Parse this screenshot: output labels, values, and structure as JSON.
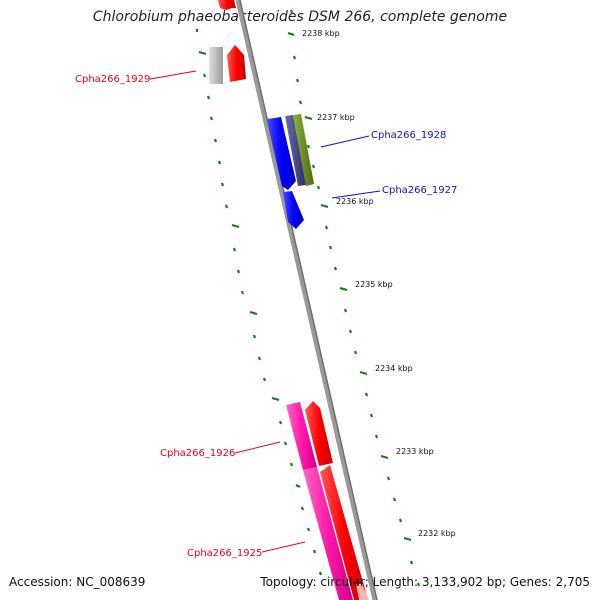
{
  "title": "Chlorobium phaeobacteroides DSM 266, complete genome",
  "footer": {
    "accession": "Accession: NC_008639",
    "summary": "Topology: circular; Length: 3,133,902 bp; Genes: 2,705"
  },
  "scale_labels": [
    "2238 kbp",
    "2237 kbp",
    "2236 kbp",
    "2235 kbp",
    "2234 kbp",
    "2233 kbp",
    "2232 kbp"
  ],
  "genes": [
    {
      "label": "Cpha266_1929",
      "color": "#e8001c"
    },
    {
      "label": "Cpha266_1928",
      "color": "#1010c8"
    },
    {
      "label": "Cpha266_1927",
      "color": "#1010c8"
    },
    {
      "label": "Cpha266_1926",
      "color": "#e8001c"
    },
    {
      "label": "Cpha266_1925",
      "color": "#e8001c"
    }
  ],
  "colors": {
    "backbone": "#808080",
    "ticks": "#1a7a1a",
    "red_gene": "#ff0000",
    "blue_gene": "#0000ff",
    "gray_gene": "#c0c0c0",
    "navy_gene": "#4b4b8a",
    "olive_gene": "#6b8e23",
    "pink_gene": "#ff1aa8"
  }
}
